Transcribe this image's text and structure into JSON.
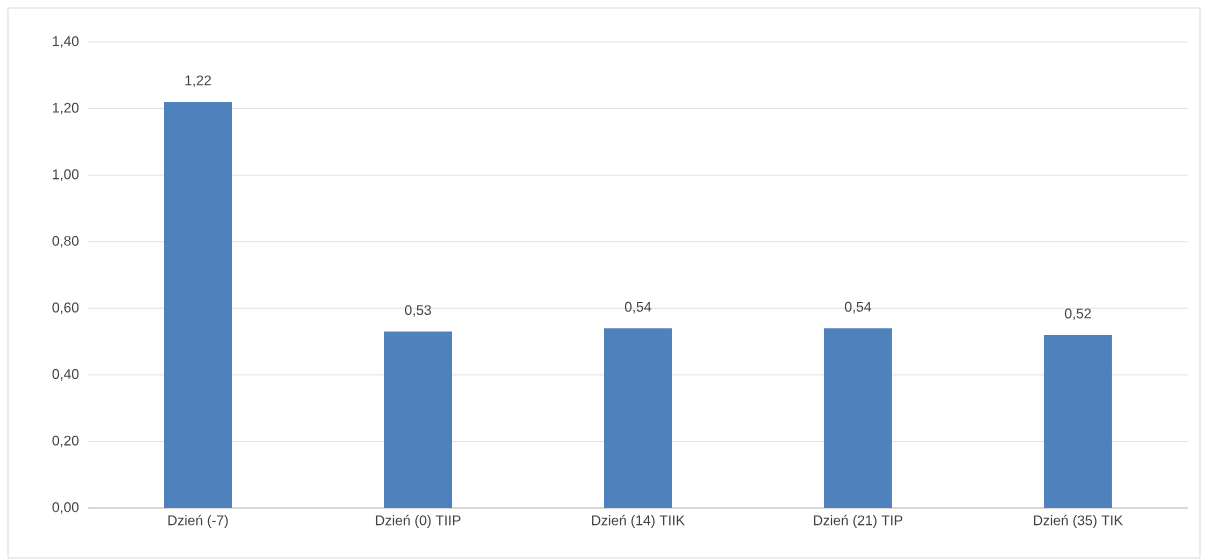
{
  "chart_data": {
    "type": "bar",
    "categories": [
      "Dzień (-7)",
      "Dzień (0) TIIP",
      "Dzień (14) TIIK",
      "Dzień (21) TIP",
      "Dzień (35) TIK"
    ],
    "values": [
      1.22,
      0.53,
      0.54,
      0.54,
      0.52
    ],
    "value_labels": [
      "1,22",
      "0,53",
      "0,54",
      "0,54",
      "0,52"
    ],
    "color": "#4f81bd",
    "ylim": [
      0,
      1.4
    ],
    "yticks": [
      {
        "value": 0,
        "label": "0,00"
      },
      {
        "value": 0.2,
        "label": "0,20"
      },
      {
        "value": 0.4,
        "label": "0,40"
      },
      {
        "value": 0.6,
        "label": "0,60"
      },
      {
        "value": 0.8,
        "label": "0,80"
      },
      {
        "value": 1.0,
        "label": "1,00"
      },
      {
        "value": 1.2,
        "label": "1,20"
      },
      {
        "value": 1.4,
        "label": "1,40"
      }
    ],
    "grid": "y"
  }
}
